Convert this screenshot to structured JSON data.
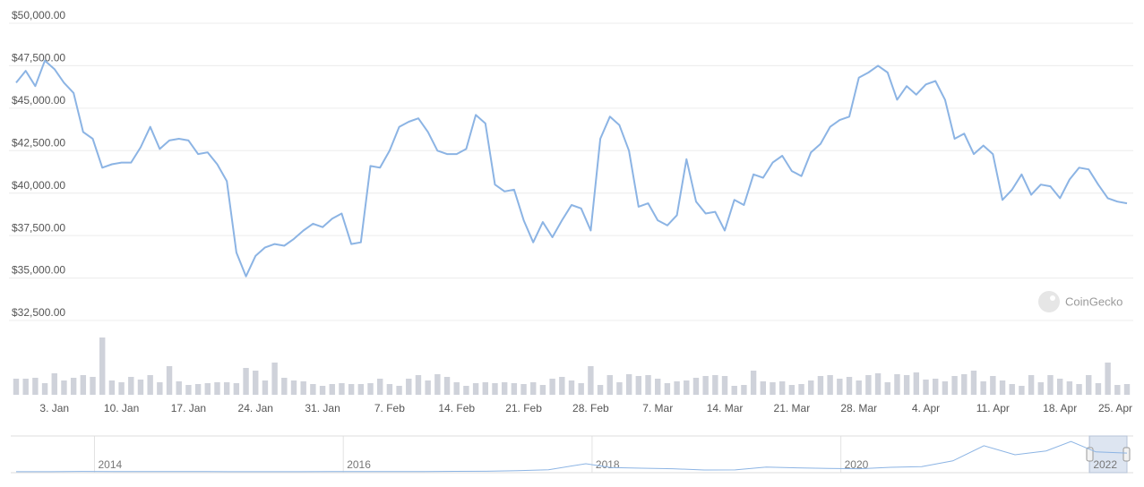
{
  "chart_data": {
    "type": "line",
    "color": "#8cb4e4",
    "categories": [
      null,
      null,
      null,
      null,
      "3. Jan",
      null,
      null,
      null,
      null,
      null,
      null,
      "10. Jan",
      null,
      null,
      null,
      null,
      null,
      null,
      "17. Jan",
      null,
      null,
      null,
      null,
      null,
      null,
      "24. Jan",
      null,
      null,
      null,
      null,
      null,
      null,
      "31. Jan",
      null,
      null,
      null,
      null,
      null,
      null,
      "7. Feb",
      null,
      null,
      null,
      null,
      null,
      null,
      "14. Feb",
      null,
      null,
      null,
      null,
      null,
      null,
      "21. Feb",
      null,
      null,
      null,
      null,
      null,
      null,
      "28. Feb",
      null,
      null,
      null,
      null,
      null,
      null,
      "7. Mar",
      null,
      null,
      null,
      null,
      null,
      null,
      "14. Mar",
      null,
      null,
      null,
      null,
      null,
      null,
      "21. Mar",
      null,
      null,
      null,
      null,
      null,
      null,
      "28. Mar",
      null,
      null,
      null,
      null,
      null,
      null,
      "4. Apr",
      null,
      null,
      null,
      null,
      null,
      null,
      "11. Apr",
      null,
      null,
      null,
      null,
      null,
      null,
      "18. Apr",
      null,
      null,
      null,
      null,
      null,
      null,
      "25. Apr"
    ],
    "values": [
      46500,
      47200,
      46300,
      47800,
      47300,
      46500,
      45900,
      43600,
      43200,
      41500,
      41700,
      41800,
      41800,
      42700,
      43900,
      42600,
      43100,
      43200,
      43100,
      42300,
      42400,
      41700,
      40700,
      36500,
      35100,
      36300,
      36800,
      37000,
      36900,
      37300,
      37800,
      38200,
      38000,
      38500,
      38800,
      37000,
      37100,
      41600,
      41500,
      42500,
      43900,
      44200,
      44400,
      43600,
      42500,
      42300,
      42300,
      42600,
      44600,
      44100,
      40500,
      40100,
      40200,
      38400,
      37100,
      38300,
      37400,
      38400,
      39300,
      39100,
      37800,
      43200,
      44500,
      44000,
      42500,
      39200,
      39400,
      38400,
      38100,
      38700,
      42000,
      39500,
      38800,
      38900,
      37800,
      39600,
      39300,
      41100,
      40900,
      41800,
      42200,
      41300,
      41000,
      42400,
      42900,
      43900,
      44300,
      44500,
      46800,
      47100,
      47500,
      47100,
      45500,
      46300,
      45800,
      46400,
      46600,
      45500,
      43200,
      43500,
      42300,
      42800,
      42300,
      39600,
      40200,
      41100,
      39900,
      40500,
      40400,
      39700,
      40800,
      41500,
      41400,
      40500,
      39700,
      39500,
      39400
    ],
    "ylim": [
      32500,
      50000
    ],
    "yticks": [
      {
        "value": 32500,
        "label": "$32,500.00"
      },
      {
        "value": 35000,
        "label": "$35,000.00"
      },
      {
        "value": 37500,
        "label": "$37,500.00"
      },
      {
        "value": 40000,
        "label": "$40,000.00"
      },
      {
        "value": 42500,
        "label": "$42,500.00"
      },
      {
        "value": 45000,
        "label": "$45,000.00"
      },
      {
        "value": 47500,
        "label": "$47,500.00"
      },
      {
        "value": 50000,
        "label": "$50,000.00"
      }
    ],
    "grid": true,
    "volume": [
      18,
      18,
      19,
      13,
      24,
      16,
      19,
      22,
      20,
      64,
      16,
      14,
      20,
      17,
      22,
      14,
      32,
      15,
      11,
      12,
      13,
      14,
      14,
      13,
      30,
      27,
      16,
      36,
      19,
      16,
      15,
      12,
      10,
      12,
      13,
      12,
      12,
      13,
      18,
      12,
      10,
      18,
      22,
      16,
      23,
      20,
      14,
      10,
      13,
      14,
      13,
      14,
      13,
      12,
      14,
      11,
      18,
      20,
      16,
      13,
      32,
      11,
      22,
      14,
      23,
      21,
      22,
      18,
      13,
      15,
      16,
      19,
      21,
      22,
      21,
      10,
      11,
      27,
      15,
      14,
      15,
      11,
      12,
      16,
      21,
      22,
      18,
      20,
      16,
      22,
      24,
      14,
      23,
      22,
      25,
      17,
      18,
      15,
      21,
      23,
      27,
      15,
      21,
      16,
      12,
      10,
      22,
      14,
      22,
      18,
      15,
      12,
      22,
      13,
      36,
      11,
      12
    ],
    "volume_color": "#cfd2da",
    "watermark": "CoinGecko",
    "navigator": {
      "x": [
        2013.37,
        2013.65,
        2013.9,
        2014.15,
        2014.4,
        2014.65,
        2014.9,
        2015.15,
        2015.4,
        2015.65,
        2015.9,
        2016.15,
        2016.4,
        2016.65,
        2016.9,
        2017.15,
        2017.4,
        2017.65,
        2017.95,
        2018.15,
        2018.4,
        2018.65,
        2018.9,
        2019.15,
        2019.4,
        2019.65,
        2019.9,
        2020.15,
        2020.4,
        2020.65,
        2020.9,
        2021.15,
        2021.4,
        2021.65,
        2021.85,
        2022.05,
        2022.3
      ],
      "values": [
        120,
        130,
        800,
        600,
        600,
        400,
        330,
        250,
        240,
        230,
        400,
        420,
        650,
        600,
        900,
        1100,
        2500,
        4300,
        17000,
        9000,
        7500,
        6500,
        3700,
        4000,
        10000,
        8300,
        7200,
        6500,
        9500,
        11000,
        23000,
        55000,
        36000,
        44000,
        64000,
        42000,
        39500
      ],
      "xlim": [
        2013.37,
        2022.3
      ],
      "ylim": [
        0,
        70000
      ],
      "xticks": [
        2014,
        2016,
        2018,
        2020,
        2022
      ],
      "color": "#8cb4e4"
    }
  }
}
